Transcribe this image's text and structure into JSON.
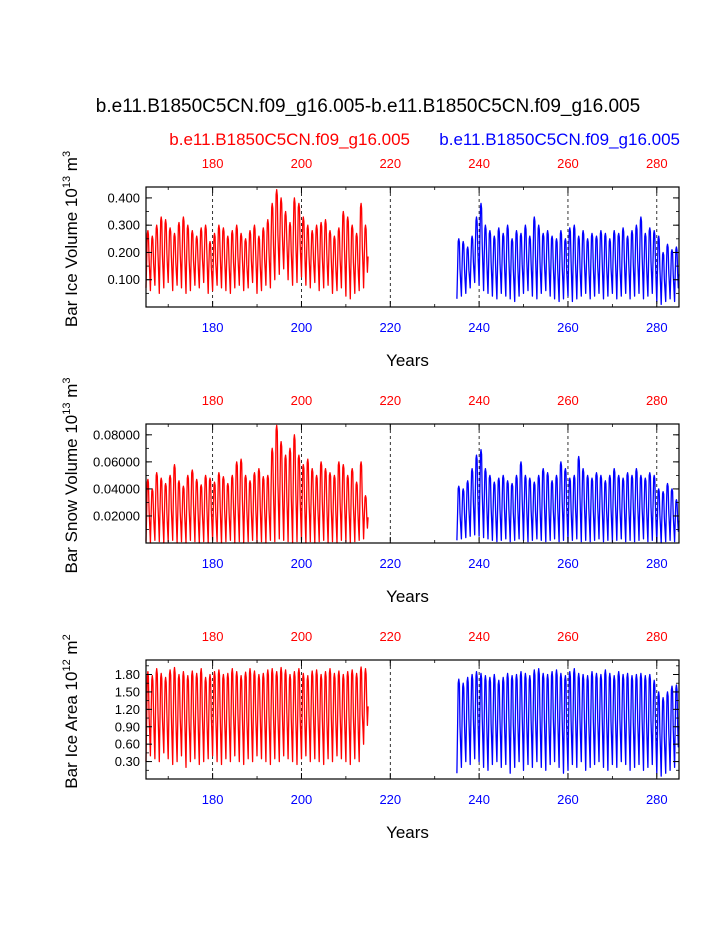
{
  "title": "b.e11.B1850C5CN.f09_g16.005-b.e11.B1850C5CN.f09_g16.005",
  "legend": {
    "case1": "b.e11.B1850C5CN.f09_g16.005",
    "case2": "b.e11.B1850C5CN.f09_g16.005"
  },
  "colors": {
    "case1": "#ff0000",
    "case2": "#0000ff",
    "axis": "#000000",
    "gridline": "#000000"
  },
  "chart_data": [
    {
      "type": "line",
      "name": "volume",
      "ylabel_main": "Bar Ice Volume 10",
      "ylabel_exp": "13",
      "ylabel_unit": " m",
      "ylabel_unit_exp": "3",
      "xlabel": "Years",
      "xlim": [
        165,
        285
      ],
      "ylim": [
        0.0,
        0.44
      ],
      "yticks": [
        0.1,
        0.2,
        0.3,
        0.4
      ],
      "ytick_labels": [
        "0.100",
        "0.200",
        "0.300",
        "0.400"
      ],
      "xticks": [
        180,
        200,
        220,
        240,
        260,
        280
      ],
      "xtick_labels": [
        "180",
        "200",
        "220",
        "240",
        "260",
        "280"
      ],
      "vlines": [
        180,
        200,
        220,
        240,
        260,
        280
      ],
      "series": [
        {
          "name": "b.e11.B1850C5CN.f09_g16.005",
          "color": "#ff0000",
          "x_start": 165,
          "x_end": 215,
          "seasonal_min": [
            0.07,
            0.06,
            0.08,
            0.05,
            0.07,
            0.09,
            0.06,
            0.08,
            0.07,
            0.05,
            0.06,
            0.08,
            0.07,
            0.09,
            0.05,
            0.06,
            0.08,
            0.07,
            0.06,
            0.05,
            0.07,
            0.08,
            0.06,
            0.07,
            0.09,
            0.05,
            0.06,
            0.08,
            0.07,
            0.1,
            0.12,
            0.14,
            0.1,
            0.08,
            0.09,
            0.11,
            0.08,
            0.07,
            0.09,
            0.06,
            0.07,
            0.08,
            0.05,
            0.06,
            0.07,
            0.04,
            0.03,
            0.05,
            0.06,
            0.07
          ],
          "seasonal_max": [
            0.28,
            0.26,
            0.3,
            0.33,
            0.32,
            0.29,
            0.27,
            0.31,
            0.33,
            0.3,
            0.28,
            0.26,
            0.29,
            0.3,
            0.24,
            0.27,
            0.3,
            0.29,
            0.26,
            0.28,
            0.3,
            0.27,
            0.25,
            0.28,
            0.3,
            0.26,
            0.29,
            0.32,
            0.38,
            0.43,
            0.4,
            0.35,
            0.31,
            0.4,
            0.38,
            0.33,
            0.3,
            0.28,
            0.3,
            0.31,
            0.32,
            0.28,
            0.26,
            0.29,
            0.35,
            0.33,
            0.3,
            0.27,
            0.38,
            0.3
          ]
        },
        {
          "name": "b.e11.B1850C5CN.f09_g16.005",
          "color": "#0000ff",
          "x_start": 235,
          "x_end": 285,
          "seasonal_min": [
            0.03,
            0.04,
            0.05,
            0.07,
            0.09,
            0.08,
            0.06,
            0.05,
            0.04,
            0.03,
            0.05,
            0.04,
            0.03,
            0.02,
            0.04,
            0.05,
            0.06,
            0.04,
            0.03,
            0.05,
            0.06,
            0.04,
            0.03,
            0.02,
            0.03,
            0.04,
            0.02,
            0.03,
            0.04,
            0.05,
            0.03,
            0.04,
            0.05,
            0.03,
            0.04,
            0.05,
            0.03,
            0.04,
            0.05,
            0.03,
            0.04,
            0.05,
            0.03,
            0.04,
            0.05,
            0.02,
            0.01,
            0.02,
            0.03,
            0.02
          ],
          "seasonal_max": [
            0.25,
            0.24,
            0.22,
            0.26,
            0.33,
            0.38,
            0.3,
            0.28,
            0.26,
            0.29,
            0.27,
            0.3,
            0.25,
            0.28,
            0.27,
            0.3,
            0.26,
            0.33,
            0.3,
            0.27,
            0.28,
            0.26,
            0.25,
            0.28,
            0.25,
            0.29,
            0.3,
            0.26,
            0.28,
            0.25,
            0.27,
            0.26,
            0.28,
            0.27,
            0.25,
            0.28,
            0.27,
            0.29,
            0.26,
            0.28,
            0.3,
            0.33,
            0.27,
            0.29,
            0.28,
            0.26,
            0.2,
            0.23,
            0.21,
            0.22
          ]
        }
      ]
    },
    {
      "type": "line",
      "name": "snow",
      "ylabel_main": "Bar Snow Volume 10",
      "ylabel_exp": "13",
      "ylabel_unit": " m",
      "ylabel_unit_exp": "3",
      "xlabel": "Years",
      "xlim": [
        165,
        285
      ],
      "ylim": [
        0.0,
        0.088
      ],
      "yticks": [
        0.02,
        0.04,
        0.06,
        0.08
      ],
      "ytick_labels": [
        "0.02000",
        "0.04000",
        "0.06000",
        "0.08000"
      ],
      "xticks": [
        180,
        200,
        220,
        240,
        260,
        280
      ],
      "xtick_labels": [
        "180",
        "200",
        "220",
        "240",
        "260",
        "280"
      ],
      "vlines": [
        180,
        200,
        220,
        240,
        260,
        280
      ],
      "series": [
        {
          "name": "b.e11.B1850C5CN.f09_g16.005",
          "color": "#ff0000",
          "x_start": 165,
          "x_end": 215,
          "seasonal_min": [
            0.001,
            0.0,
            0.002,
            0.001,
            0.0,
            0.001,
            0.002,
            0.0,
            0.001,
            0.0,
            0.002,
            0.001,
            0.0,
            0.001,
            0.0,
            0.002,
            0.001,
            0.0,
            0.001,
            0.002,
            0.0,
            0.001,
            0.0,
            0.001,
            0.002,
            0.0,
            0.001,
            0.0,
            0.002,
            0.001,
            0.003,
            0.002,
            0.001,
            0.0,
            0.001,
            0.002,
            0.0,
            0.001,
            0.0,
            0.001,
            0.002,
            0.0,
            0.001,
            0.0,
            0.002,
            0.001,
            0.0,
            0.001,
            0.002,
            0.003
          ],
          "seasonal_max": [
            0.047,
            0.04,
            0.052,
            0.048,
            0.044,
            0.05,
            0.058,
            0.046,
            0.042,
            0.05,
            0.054,
            0.047,
            0.043,
            0.05,
            0.048,
            0.045,
            0.052,
            0.049,
            0.044,
            0.05,
            0.06,
            0.062,
            0.05,
            0.046,
            0.052,
            0.055,
            0.049,
            0.05,
            0.07,
            0.087,
            0.075,
            0.065,
            0.07,
            0.08,
            0.065,
            0.058,
            0.062,
            0.055,
            0.05,
            0.06,
            0.055,
            0.052,
            0.05,
            0.06,
            0.058,
            0.05,
            0.055,
            0.045,
            0.06,
            0.035
          ]
        },
        {
          "name": "b.e11.B1850C5CN.f09_g16.005",
          "color": "#0000ff",
          "x_start": 235,
          "x_end": 285,
          "seasonal_min": [
            0.002,
            0.003,
            0.004,
            0.005,
            0.006,
            0.005,
            0.004,
            0.003,
            0.002,
            0.001,
            0.002,
            0.003,
            0.001,
            0.002,
            0.003,
            0.002,
            0.001,
            0.002,
            0.003,
            0.002,
            0.001,
            0.002,
            0.003,
            0.001,
            0.002,
            0.001,
            0.002,
            0.003,
            0.001,
            0.002,
            0.001,
            0.002,
            0.003,
            0.001,
            0.002,
            0.001,
            0.002,
            0.003,
            0.001,
            0.002,
            0.001,
            0.002,
            0.003,
            0.001,
            0.002,
            0.001,
            0.0,
            0.001,
            0.002,
            0.001
          ],
          "seasonal_max": [
            0.042,
            0.04,
            0.046,
            0.055,
            0.065,
            0.069,
            0.055,
            0.05,
            0.045,
            0.048,
            0.05,
            0.046,
            0.044,
            0.05,
            0.06,
            0.05,
            0.048,
            0.045,
            0.05,
            0.055,
            0.052,
            0.046,
            0.05,
            0.06,
            0.055,
            0.048,
            0.05,
            0.064,
            0.055,
            0.05,
            0.048,
            0.052,
            0.05,
            0.046,
            0.05,
            0.055,
            0.05,
            0.048,
            0.052,
            0.05,
            0.055,
            0.05,
            0.048,
            0.052,
            0.05,
            0.04,
            0.038,
            0.044,
            0.04,
            0.032
          ]
        }
      ]
    },
    {
      "type": "line",
      "name": "area",
      "ylabel_main": "Bar Ice Area 10",
      "ylabel_exp": "12",
      "ylabel_unit": " m",
      "ylabel_unit_exp": "2",
      "xlabel": "Years",
      "xlim": [
        165,
        285
      ],
      "ylim": [
        0.0,
        2.05
      ],
      "yticks": [
        0.3,
        0.6,
        0.9,
        1.2,
        1.5,
        1.8
      ],
      "ytick_labels": [
        "0.30",
        "0.60",
        "0.90",
        "1.20",
        "1.50",
        "1.80"
      ],
      "xticks": [
        180,
        200,
        220,
        240,
        260,
        280
      ],
      "xtick_labels": [
        "180",
        "200",
        "220",
        "240",
        "260",
        "280"
      ],
      "vlines": [
        180,
        200,
        220,
        240,
        260,
        280
      ],
      "series": [
        {
          "name": "b.e11.B1850C5CN.f09_g16.005",
          "color": "#ff0000",
          "x_start": 165,
          "x_end": 215,
          "seasonal_min": [
            0.3,
            0.4,
            0.35,
            0.3,
            0.45,
            0.35,
            0.25,
            0.3,
            0.4,
            0.2,
            0.3,
            0.35,
            0.25,
            0.3,
            0.35,
            0.4,
            0.3,
            0.25,
            0.35,
            0.3,
            0.4,
            0.3,
            0.25,
            0.35,
            0.3,
            0.4,
            0.35,
            0.3,
            0.25,
            0.35,
            0.3,
            0.4,
            0.35,
            0.3,
            0.25,
            0.35,
            0.4,
            0.3,
            0.35,
            0.3,
            0.25,
            0.35,
            0.3,
            0.4,
            0.35,
            0.3,
            0.25,
            0.35,
            0.3,
            0.6
          ],
          "seasonal_max": [
            1.85,
            1.78,
            1.9,
            1.82,
            1.75,
            1.88,
            1.92,
            1.8,
            1.85,
            1.78,
            1.86,
            1.82,
            1.9,
            1.75,
            1.8,
            1.85,
            1.88,
            1.8,
            1.82,
            1.9,
            1.85,
            1.78,
            1.84,
            1.9,
            1.86,
            1.8,
            1.82,
            1.88,
            1.9,
            1.85,
            1.92,
            1.88,
            1.8,
            1.85,
            1.9,
            1.82,
            1.78,
            1.86,
            1.88,
            1.8,
            1.85,
            1.9,
            1.82,
            1.86,
            1.8,
            1.85,
            1.88,
            1.82,
            1.93,
            1.9
          ]
        },
        {
          "name": "b.e11.B1850C5CN.f09_g16.005",
          "color": "#0000ff",
          "x_start": 235,
          "x_end": 285,
          "seasonal_min": [
            0.1,
            0.2,
            0.3,
            0.25,
            0.35,
            0.3,
            0.2,
            0.15,
            0.25,
            0.3,
            0.2,
            0.25,
            0.1,
            0.2,
            0.3,
            0.15,
            0.25,
            0.2,
            0.3,
            0.2,
            0.15,
            0.25,
            0.3,
            0.2,
            0.1,
            0.15,
            0.25,
            0.2,
            0.3,
            0.15,
            0.2,
            0.25,
            0.3,
            0.2,
            0.15,
            0.25,
            0.2,
            0.3,
            0.25,
            0.15,
            0.2,
            0.25,
            0.15,
            0.2,
            0.25,
            0.1,
            0.05,
            0.1,
            0.15,
            0.2
          ],
          "seasonal_max": [
            1.72,
            1.65,
            1.75,
            1.8,
            1.85,
            1.82,
            1.78,
            1.75,
            1.8,
            1.7,
            1.75,
            1.82,
            1.78,
            1.8,
            1.85,
            1.82,
            1.78,
            1.88,
            1.9,
            1.82,
            1.8,
            1.85,
            1.88,
            1.82,
            1.78,
            1.85,
            1.9,
            1.82,
            1.8,
            1.78,
            1.85,
            1.82,
            1.8,
            1.88,
            1.82,
            1.78,
            1.85,
            1.8,
            1.82,
            1.78,
            1.8,
            1.82,
            1.78,
            1.8,
            1.7,
            1.5,
            1.4,
            1.5,
            1.6,
            1.62
          ]
        }
      ]
    }
  ]
}
